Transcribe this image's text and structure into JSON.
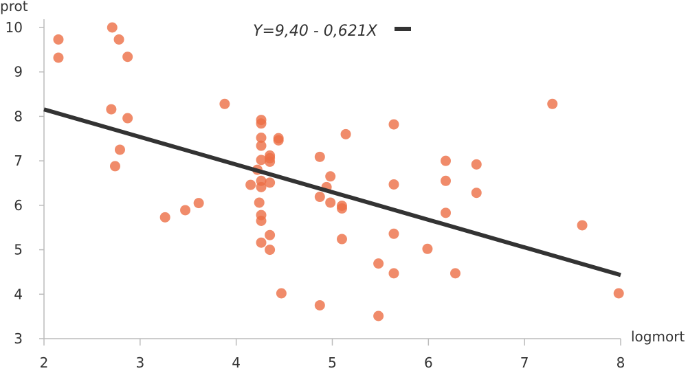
{
  "chart_data": {
    "type": "scatter",
    "xlabel": "logmort",
    "ylabel": "prot",
    "xlim": [
      2,
      8
    ],
    "ylim": [
      3,
      10
    ],
    "x_ticks": [
      2,
      3,
      4,
      5,
      6,
      7,
      8
    ],
    "y_ticks": [
      3,
      4,
      5,
      6,
      7,
      8,
      9,
      10
    ],
    "grid": false,
    "point_color": "#ec6e45",
    "line_color": "#333333",
    "fit_line": {
      "intercept": 9.4,
      "slope": -0.621,
      "x_range": [
        2,
        8
      ]
    },
    "legend": {
      "label": "Y=9,40 - 0,621X",
      "position": "top-center"
    },
    "points": [
      {
        "x": 2.15,
        "y": 9.73
      },
      {
        "x": 2.15,
        "y": 9.32
      },
      {
        "x": 2.71,
        "y": 10.0
      },
      {
        "x": 2.78,
        "y": 9.73
      },
      {
        "x": 2.87,
        "y": 9.34
      },
      {
        "x": 2.7,
        "y": 8.16
      },
      {
        "x": 2.87,
        "y": 7.96
      },
      {
        "x": 2.79,
        "y": 7.25
      },
      {
        "x": 2.74,
        "y": 6.88
      },
      {
        "x": 3.26,
        "y": 5.73
      },
      {
        "x": 3.47,
        "y": 5.89
      },
      {
        "x": 3.61,
        "y": 6.05
      },
      {
        "x": 3.88,
        "y": 8.28
      },
      {
        "x": 4.15,
        "y": 6.46
      },
      {
        "x": 4.22,
        "y": 6.8
      },
      {
        "x": 4.24,
        "y": 6.06
      },
      {
        "x": 4.26,
        "y": 7.92
      },
      {
        "x": 4.26,
        "y": 7.84
      },
      {
        "x": 4.26,
        "y": 7.52
      },
      {
        "x": 4.26,
        "y": 7.34
      },
      {
        "x": 4.26,
        "y": 7.02
      },
      {
        "x": 4.26,
        "y": 6.55
      },
      {
        "x": 4.26,
        "y": 6.41
      },
      {
        "x": 4.26,
        "y": 5.78
      },
      {
        "x": 4.26,
        "y": 5.65
      },
      {
        "x": 4.26,
        "y": 5.16
      },
      {
        "x": 4.35,
        "y": 7.12
      },
      {
        "x": 4.35,
        "y": 7.06
      },
      {
        "x": 4.35,
        "y": 6.98
      },
      {
        "x": 4.35,
        "y": 6.51
      },
      {
        "x": 4.35,
        "y": 5.33
      },
      {
        "x": 4.35,
        "y": 5.0
      },
      {
        "x": 4.44,
        "y": 7.51
      },
      {
        "x": 4.44,
        "y": 7.46
      },
      {
        "x": 4.47,
        "y": 4.02
      },
      {
        "x": 4.87,
        "y": 7.09
      },
      {
        "x": 4.87,
        "y": 6.19
      },
      {
        "x": 4.87,
        "y": 3.75
      },
      {
        "x": 4.94,
        "y": 6.41
      },
      {
        "x": 4.98,
        "y": 6.65
      },
      {
        "x": 4.98,
        "y": 6.06
      },
      {
        "x": 5.1,
        "y": 5.99
      },
      {
        "x": 5.1,
        "y": 5.93
      },
      {
        "x": 5.1,
        "y": 5.24
      },
      {
        "x": 5.14,
        "y": 7.6
      },
      {
        "x": 5.48,
        "y": 4.69
      },
      {
        "x": 5.48,
        "y": 3.51
      },
      {
        "x": 5.64,
        "y": 7.82
      },
      {
        "x": 5.64,
        "y": 6.47
      },
      {
        "x": 5.64,
        "y": 5.36
      },
      {
        "x": 5.64,
        "y": 4.47
      },
      {
        "x": 5.99,
        "y": 5.02
      },
      {
        "x": 6.18,
        "y": 7.0
      },
      {
        "x": 6.18,
        "y": 6.55
      },
      {
        "x": 6.18,
        "y": 5.83
      },
      {
        "x": 6.28,
        "y": 4.47
      },
      {
        "x": 6.5,
        "y": 6.92
      },
      {
        "x": 6.5,
        "y": 6.28
      },
      {
        "x": 7.29,
        "y": 8.28
      },
      {
        "x": 7.6,
        "y": 5.55
      },
      {
        "x": 7.98,
        "y": 4.02
      }
    ]
  }
}
